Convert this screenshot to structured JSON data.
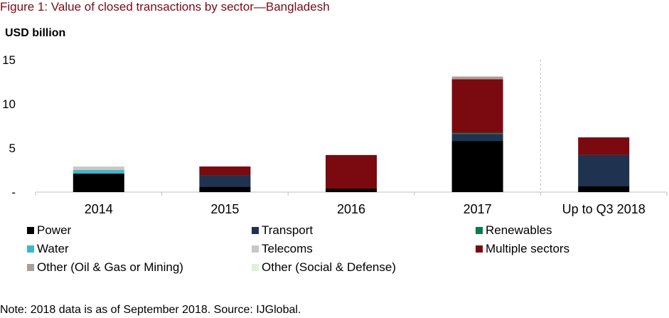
{
  "title": "Figure 1: Value of closed transactions by sector—Bangladesh",
  "note": "Note: 2018 data is as of September 2018. Source: IJGlobal.",
  "chart_data": {
    "type": "bar",
    "stacked": true,
    "ylabel": "USD billion",
    "ylim": [
      0,
      15
    ],
    "yticks": [
      {
        "value": 0,
        "label": "-"
      },
      {
        "value": 5,
        "label": "5"
      },
      {
        "value": 10,
        "label": "10"
      },
      {
        "value": 15,
        "label": "15"
      }
    ],
    "categories": [
      "2014",
      "2015",
      "2016",
      "2017",
      "Up to Q3 2018"
    ],
    "grid": false,
    "legend_position": "bottom",
    "separator_before_category": 4,
    "series": [
      {
        "name": "Power",
        "color": "#000000",
        "values": [
          2.1,
          0.6,
          0.4,
          5.8,
          0.7
        ]
      },
      {
        "name": "Transport",
        "color": "#1f3350",
        "values": [
          0.0,
          1.3,
          0.0,
          0.8,
          3.5
        ]
      },
      {
        "name": "Renewables",
        "color": "#0b7a4b",
        "values": [
          0.0,
          0.0,
          0.0,
          0.1,
          0.0
        ]
      },
      {
        "name": "Water",
        "color": "#3db8c8",
        "values": [
          0.4,
          0.0,
          0.0,
          0.0,
          0.0
        ]
      },
      {
        "name": "Telecoms",
        "color": "#c8c8c8",
        "values": [
          0.4,
          0.0,
          0.0,
          0.0,
          0.0
        ]
      },
      {
        "name": "Multiple sectors",
        "color": "#7a0a10",
        "values": [
          0.0,
          1.0,
          3.8,
          6.1,
          2.0
        ]
      },
      {
        "name": "Other (Oil & Gas or Mining)",
        "color": "#a89f99",
        "values": [
          0.0,
          0.0,
          0.0,
          0.3,
          0.0
        ]
      },
      {
        "name": "Other (Social & Defense)",
        "color": "#e2efda",
        "values": [
          0.0,
          0.0,
          0.0,
          0.0,
          0.0
        ]
      }
    ]
  }
}
